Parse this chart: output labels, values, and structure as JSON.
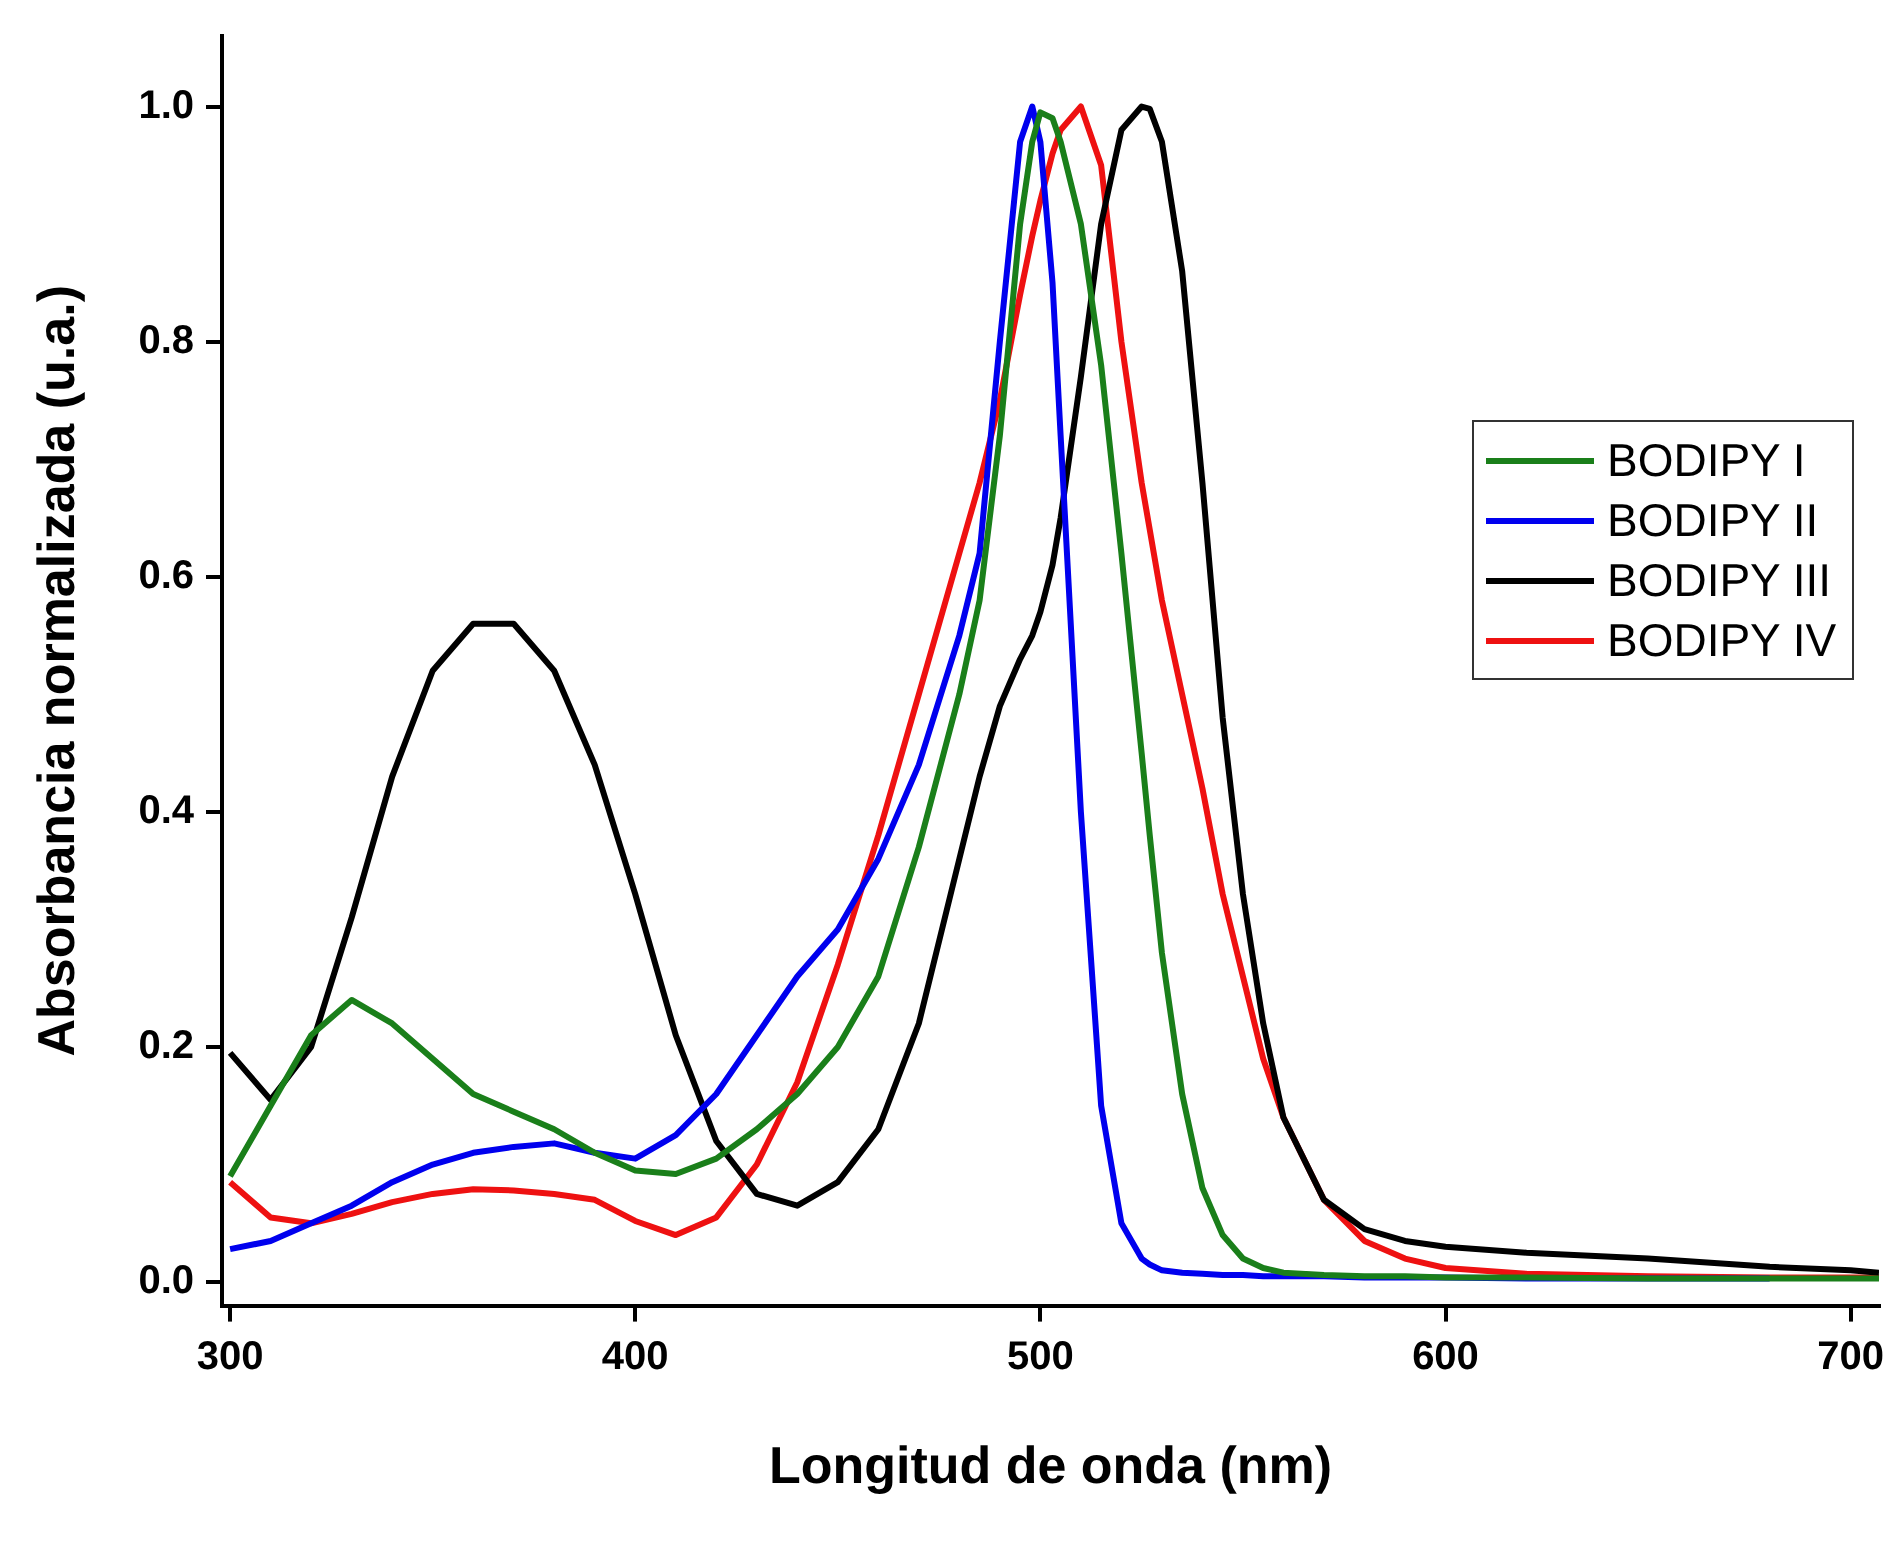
{
  "chart_data": {
    "type": "line",
    "xlabel": "Longitud de onda (nm)",
    "ylabel": "Absorbancia normalizada (u.a.)",
    "x": [
      300,
      310,
      320,
      330,
      340,
      350,
      360,
      370,
      380,
      390,
      400,
      410,
      420,
      430,
      440,
      450,
      460,
      470,
      480,
      485,
      490,
      495,
      498,
      500,
      503,
      505,
      510,
      515,
      520,
      525,
      527,
      530,
      535,
      540,
      545,
      550,
      555,
      560,
      570,
      580,
      590,
      600,
      620,
      650,
      680,
      700,
      707
    ],
    "xlim": [
      298,
      707
    ],
    "xticks": [
      300,
      400,
      500,
      600,
      700
    ],
    "ylim": [
      -0.02,
      1.06
    ],
    "yticks": [
      {
        "value": 0,
        "label": "0.0"
      },
      {
        "value": 0.2,
        "label": "0.2"
      },
      {
        "value": 0.4,
        "label": "0.4"
      },
      {
        "value": 0.6,
        "label": "0.6"
      },
      {
        "value": 0.8,
        "label": "0.8"
      },
      {
        "value": 1,
        "label": "1.0"
      }
    ],
    "grid": false,
    "legend": "right",
    "marker": "none",
    "line_style": "solid",
    "series": [
      {
        "name": "BODIPY I",
        "color": "#1a7f1a",
        "values": [
          0.09,
          0.15,
          0.21,
          0.24,
          0.22,
          0.19,
          0.16,
          0.145,
          0.13,
          0.11,
          0.095,
          0.092,
          0.105,
          0.13,
          0.16,
          0.2,
          0.26,
          0.37,
          0.5,
          0.58,
          0.72,
          0.9,
          0.97,
          0.995,
          0.99,
          0.97,
          0.9,
          0.78,
          0.62,
          0.45,
          0.38,
          0.28,
          0.16,
          0.08,
          0.04,
          0.02,
          0.012,
          0.008,
          0.006,
          0.005,
          0.005,
          0.004,
          0.004,
          0.003,
          0.003,
          0.003,
          0.003
        ]
      },
      {
        "name": "BODIPY II",
        "color": "#0000ee",
        "values": [
          0.028,
          0.035,
          0.05,
          0.065,
          0.085,
          0.1,
          0.11,
          0.115,
          0.118,
          0.11,
          0.105,
          0.125,
          0.16,
          0.21,
          0.26,
          0.3,
          0.36,
          0.44,
          0.55,
          0.62,
          0.8,
          0.97,
          1.0,
          0.97,
          0.85,
          0.72,
          0.4,
          0.15,
          0.05,
          0.02,
          0.015,
          0.01,
          0.008,
          0.007,
          0.006,
          0.006,
          0.005,
          0.005,
          0.005,
          0.004,
          0.004,
          0.004,
          0.003,
          0.003,
          0.003,
          null,
          null
        ]
      },
      {
        "name": "BODIPY III",
        "color": "#000000",
        "values": [
          0.195,
          0.155,
          0.2,
          0.31,
          0.43,
          0.52,
          0.56,
          0.56,
          0.52,
          0.44,
          0.33,
          0.21,
          0.12,
          0.075,
          0.065,
          0.085,
          0.13,
          0.22,
          0.36,
          0.43,
          0.49,
          0.53,
          0.55,
          0.57,
          0.61,
          0.65,
          0.77,
          0.9,
          0.98,
          1.0,
          0.998,
          0.97,
          0.86,
          0.68,
          0.48,
          0.33,
          0.22,
          0.14,
          0.07,
          0.045,
          0.035,
          0.03,
          0.025,
          0.02,
          0.013,
          0.01,
          0.008
        ]
      },
      {
        "name": "BODIPY IV",
        "color": "#ee1111",
        "values": [
          0.085,
          0.055,
          0.05,
          0.058,
          0.068,
          0.075,
          0.079,
          0.078,
          0.075,
          0.07,
          0.052,
          0.04,
          0.055,
          0.1,
          0.17,
          0.27,
          0.38,
          0.5,
          0.62,
          0.68,
          0.75,
          0.84,
          0.89,
          0.92,
          0.96,
          0.98,
          1.0,
          0.95,
          0.8,
          0.68,
          0.64,
          0.58,
          0.5,
          0.42,
          0.33,
          0.26,
          0.19,
          0.14,
          0.07,
          0.035,
          0.02,
          0.012,
          0.007,
          0.005,
          0.004,
          0.004,
          0.004
        ]
      }
    ]
  }
}
